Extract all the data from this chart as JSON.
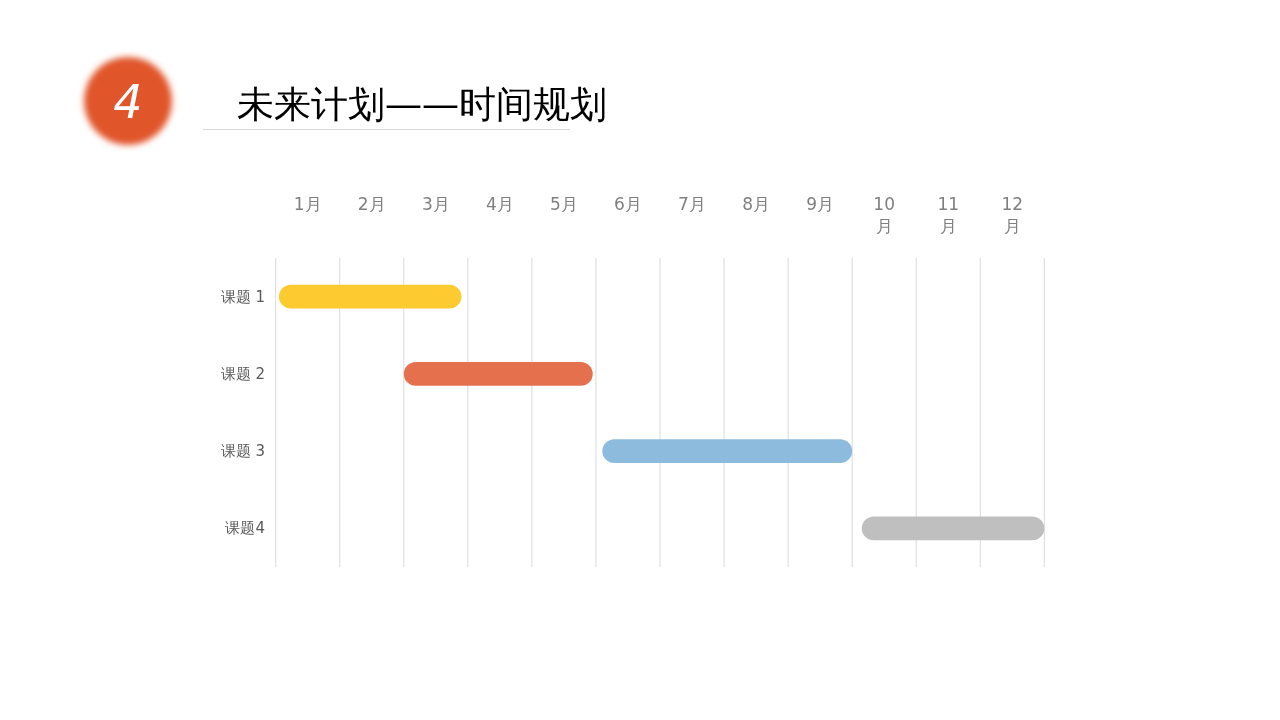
{
  "chart_data": {
    "type": "bar",
    "orientation": "horizontal",
    "title": "未来计划——时间规划",
    "annotations": [
      "4"
    ],
    "categories": [
      "课题 1",
      "课题 2",
      "课题 3",
      "课题4"
    ],
    "base": [
      0.05,
      2.0,
      5.1,
      9.15
    ],
    "values": [
      2.85,
      2.95,
      3.9,
      2.85
    ],
    "colors": [
      "#fdca30",
      "#e5704e",
      "#8cbbde",
      "#bfbfbf"
    ],
    "xlim": [
      0,
      12
    ],
    "xticks": [
      {
        "value": 0,
        "label": null
      },
      {
        "value": 0.5,
        "label": "1月"
      },
      {
        "value": 1,
        "label": null
      },
      {
        "value": 1.5,
        "label": "2月"
      },
      {
        "value": 2,
        "label": null
      },
      {
        "value": 2.5,
        "label": "3月"
      },
      {
        "value": 3,
        "label": null
      },
      {
        "value": 3.5,
        "label": "4月"
      },
      {
        "value": 4,
        "label": null
      },
      {
        "value": 4.5,
        "label": "5月"
      },
      {
        "value": 5,
        "label": null
      },
      {
        "value": 5.5,
        "label": "6月"
      },
      {
        "value": 6,
        "label": null
      },
      {
        "value": 6.5,
        "label": "7月"
      },
      {
        "value": 7,
        "label": null
      },
      {
        "value": 7.5,
        "label": "8月"
      },
      {
        "value": 8,
        "label": null
      },
      {
        "value": 8.5,
        "label": "9月"
      },
      {
        "value": 9,
        "label": null
      },
      {
        "value": 9.5,
        "label": "10月"
      },
      {
        "value": 10,
        "label": null
      },
      {
        "value": 10.5,
        "label": "11月"
      },
      {
        "value": 11,
        "label": null
      },
      {
        "value": 11.5,
        "label": "12月"
      },
      {
        "value": 12,
        "label": null
      }
    ],
    "grid": "x"
  }
}
